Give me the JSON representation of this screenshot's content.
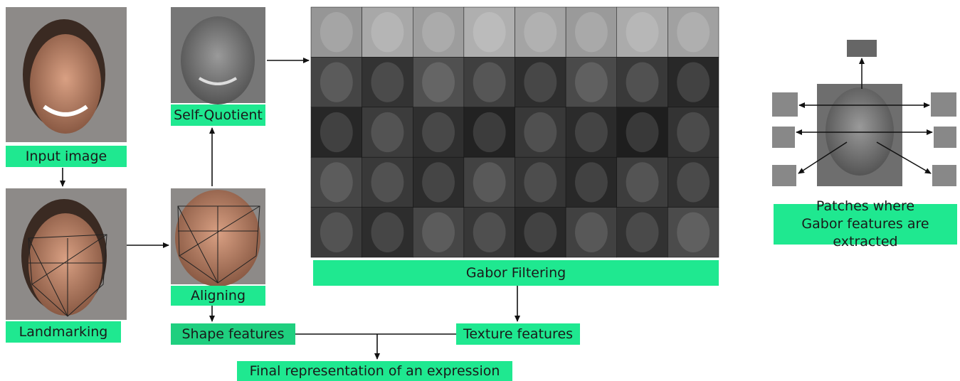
{
  "nodes": [
    {
      "label": "Input image"
    },
    {
      "label": "Landmarking"
    },
    {
      "label": "Aligning"
    },
    {
      "label": "Self-Quotient"
    },
    {
      "label": "Gabor Filtering"
    },
    {
      "label": "Shape features"
    },
    {
      "label": "Texture features"
    },
    {
      "label": "Final representation of an expression"
    }
  ],
  "patches": {
    "label": "Patches where Gabor features are extracted"
  }
}
